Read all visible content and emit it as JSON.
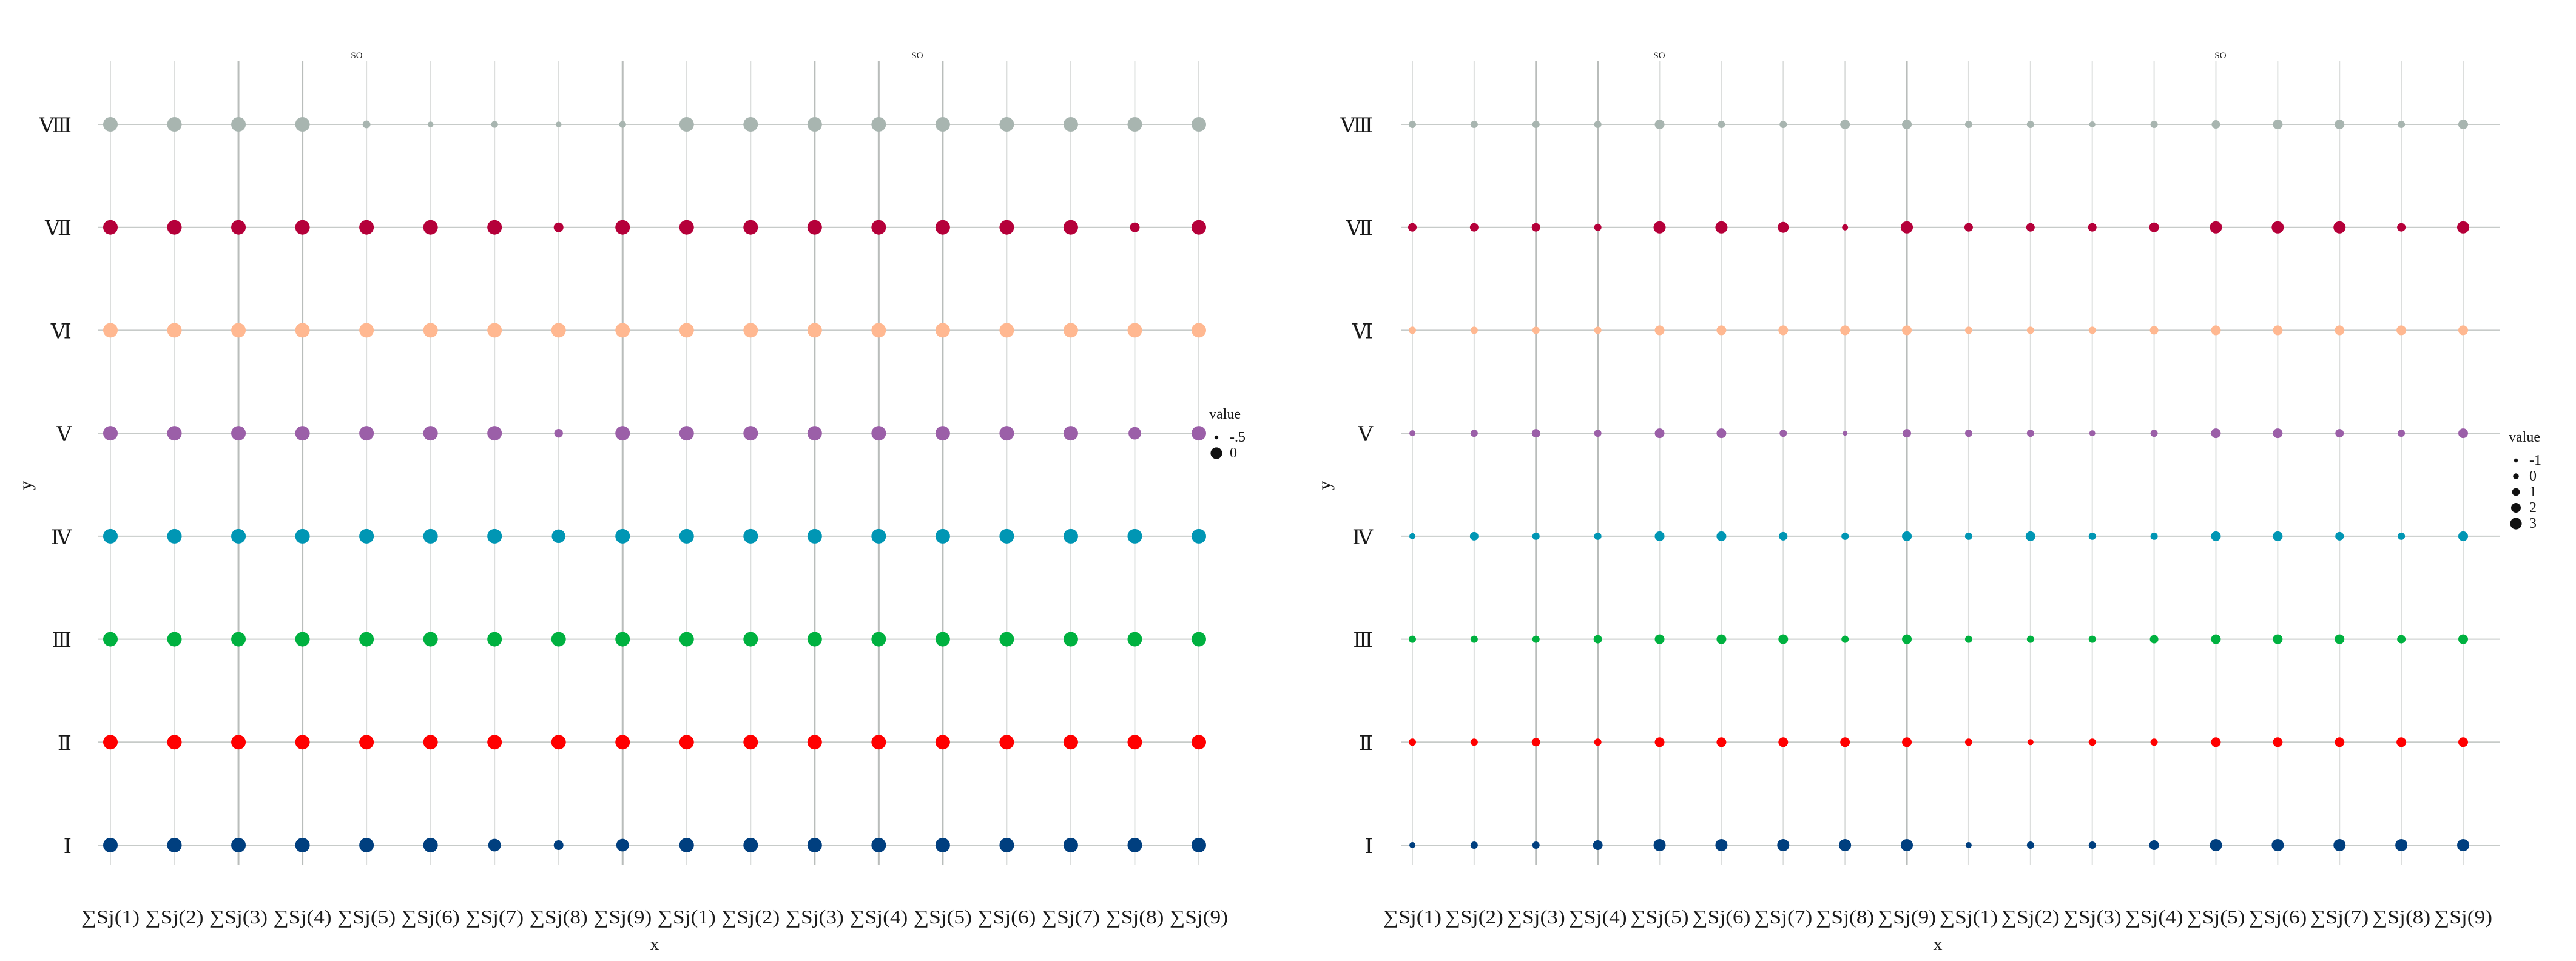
{
  "chart_data": [
    {
      "type": "scatter",
      "top_labels": [
        "SO",
        "SO"
      ],
      "xlabel": "x",
      "ylabel": "y",
      "categories": [
        "∑Sj(1)",
        "∑Sj(2)",
        "∑Sj(3)",
        "∑Sj(4)",
        "∑Sj(5)",
        "∑Sj(6)",
        "∑Sj(7)",
        "∑Sj(8)",
        "∑Sj(9)",
        "∑Sj(1)",
        "∑Sj(2)",
        "∑Sj(3)",
        "∑Sj(4)",
        "∑Sj(5)",
        "∑Sj(6)",
        "∑Sj(7)",
        "∑Sj(8)",
        "∑Sj(9)"
      ],
      "y_categories": [
        "Ⅰ",
        "Ⅱ",
        "Ⅲ",
        "Ⅳ",
        "Ⅴ",
        "Ⅵ",
        "Ⅶ",
        "Ⅷ"
      ],
      "grid": true,
      "legend": {
        "title": "value",
        "position": "right",
        "entries": [
          {
            "label": "-.5",
            "value": -0.5
          },
          {
            "label": "0",
            "value": 0
          }
        ]
      },
      "size_range": [
        -0.5,
        0
      ],
      "series": [
        {
          "y": "Ⅰ",
          "color": "#003f7f",
          "values": [
            0,
            0,
            0,
            0,
            0,
            0,
            -0.1,
            -0.25,
            -0.1,
            0,
            0,
            0,
            0,
            0,
            0,
            0,
            0,
            0
          ]
        },
        {
          "y": "Ⅱ",
          "color": "#ff0000",
          "values": [
            0,
            0,
            0,
            0,
            0,
            0,
            0,
            0,
            0,
            0,
            0,
            0,
            0,
            0,
            0,
            0,
            0,
            0
          ]
        },
        {
          "y": "Ⅲ",
          "color": "#00b140",
          "values": [
            0,
            0,
            0,
            0,
            0,
            0,
            0,
            0,
            0,
            0,
            0,
            0,
            0,
            0,
            0,
            0,
            0,
            0
          ]
        },
        {
          "y": "Ⅳ",
          "color": "#0096b4",
          "values": [
            0,
            0,
            0,
            0,
            0,
            0,
            0,
            -0.05,
            0,
            0,
            0,
            0,
            0,
            0,
            0,
            0,
            0,
            0
          ]
        },
        {
          "y": "Ⅴ",
          "color": "#9b5fa8",
          "values": [
            0,
            0,
            0,
            0,
            0,
            0,
            0,
            -0.3,
            0,
            0,
            0,
            0,
            0,
            0,
            0,
            0,
            -0.1,
            0
          ]
        },
        {
          "y": "Ⅵ",
          "color": "#ffb891",
          "values": [
            0,
            0,
            0,
            0,
            0,
            0,
            0,
            0,
            0,
            0,
            0,
            0,
            0,
            0,
            0,
            0,
            0,
            0
          ]
        },
        {
          "y": "Ⅶ",
          "color": "#b5003a",
          "values": [
            0,
            0,
            0,
            0,
            0,
            0,
            0,
            -0.25,
            0,
            0,
            0,
            0,
            0,
            0,
            0,
            0,
            -0.25,
            0
          ]
        },
        {
          "y": "Ⅷ",
          "color": "#a8b5b0",
          "values": [
            0,
            0,
            0,
            0,
            -0.35,
            -0.45,
            -0.4,
            -0.45,
            -0.4,
            0,
            0,
            0,
            0,
            0,
            0,
            0,
            0,
            0
          ]
        }
      ]
    },
    {
      "type": "scatter",
      "top_labels": [
        "SO",
        "SO"
      ],
      "xlabel": "x",
      "ylabel": "y",
      "categories": [
        "∑Sj(1)",
        "∑Sj(2)",
        "∑Sj(3)",
        "∑Sj(4)",
        "∑Sj(5)",
        "∑Sj(6)",
        "∑Sj(7)",
        "∑Sj(8)",
        "∑Sj(9)",
        "∑Sj(1)",
        "∑Sj(2)",
        "∑Sj(3)",
        "∑Sj(4)",
        "∑Sj(5)",
        "∑Sj(6)",
        "∑Sj(7)",
        "∑Sj(8)",
        "∑Sj(9)"
      ],
      "y_categories": [
        "Ⅰ",
        "Ⅱ",
        "Ⅲ",
        "Ⅳ",
        "Ⅴ",
        "Ⅵ",
        "Ⅶ",
        "Ⅷ"
      ],
      "grid": true,
      "legend": {
        "title": "value",
        "position": "right",
        "entries": [
          {
            "label": "-1",
            "value": -1
          },
          {
            "label": "0",
            "value": 0
          },
          {
            "label": "1",
            "value": 1
          },
          {
            "label": "2",
            "value": 2
          },
          {
            "label": "3",
            "value": 3
          }
        ]
      },
      "size_range": [
        -1,
        3
      ],
      "series": [
        {
          "y": "Ⅰ",
          "color": "#003f7f",
          "values": [
            -0.5,
            0,
            0,
            1,
            2,
            2,
            2,
            2,
            2,
            -0.5,
            0,
            0,
            1,
            2,
            2,
            2,
            2,
            2
          ]
        },
        {
          "y": "Ⅱ",
          "color": "#ff0000",
          "values": [
            0,
            0,
            0.5,
            0,
            1,
            1,
            1,
            1,
            1,
            0,
            -0.5,
            0,
            0,
            1,
            1,
            1,
            1,
            1
          ]
        },
        {
          "y": "Ⅲ",
          "color": "#00b140",
          "values": [
            0,
            0,
            0,
            0.5,
            1,
            1,
            1,
            0,
            1,
            0,
            0,
            0,
            0.5,
            1,
            1,
            1,
            0.5,
            1
          ]
        },
        {
          "y": "Ⅳ",
          "color": "#0096b4",
          "values": [
            -0.5,
            0.5,
            0,
            0,
            1,
            1,
            0.5,
            0,
            1,
            0,
            1,
            0,
            0,
            1,
            1,
            0.5,
            0,
            1
          ]
        },
        {
          "y": "Ⅴ",
          "color": "#9b5fa8",
          "values": [
            -0.5,
            0,
            0.5,
            0,
            1,
            1,
            0,
            -1,
            0.5,
            0,
            0,
            -0.5,
            0,
            1,
            1,
            0.5,
            0,
            1
          ]
        },
        {
          "y": "Ⅵ",
          "color": "#ffb891",
          "values": [
            0,
            0,
            0,
            0,
            1,
            1,
            1,
            1,
            1,
            0,
            0,
            0,
            0.5,
            1,
            1,
            1,
            1,
            1
          ]
        },
        {
          "y": "Ⅶ",
          "color": "#b5003a",
          "values": [
            0.5,
            0.5,
            0.5,
            0,
            2,
            2,
            1.5,
            -0.5,
            2,
            0.5,
            0.5,
            0.5,
            1,
            2,
            2,
            2,
            0.5,
            2
          ]
        },
        {
          "y": "Ⅷ",
          "color": "#a8b5b0",
          "values": [
            0,
            0,
            0,
            0,
            1,
            0,
            0,
            1,
            1,
            0,
            0,
            -0.5,
            0,
            0.5,
            1,
            1,
            0,
            1
          ]
        }
      ]
    }
  ]
}
